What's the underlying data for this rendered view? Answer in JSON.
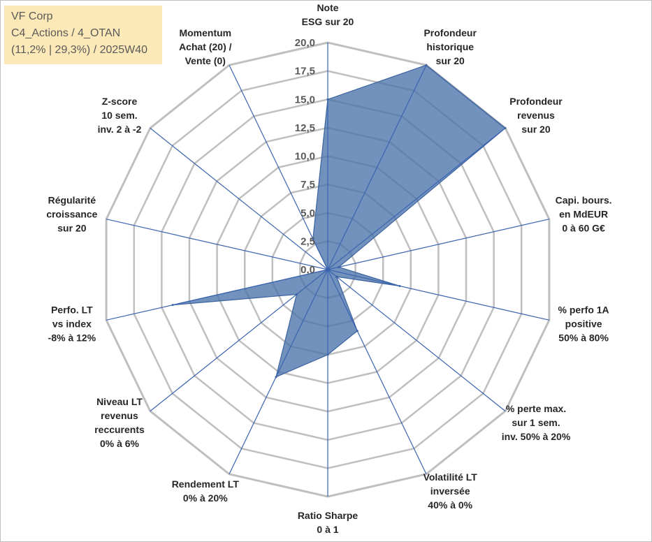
{
  "info_box": {
    "line1": "VF Corp",
    "line2": "C4_Actions / 4_OTAN",
    "line3": "(11,2% | 29,3%) / 2025W40"
  },
  "chart_data": {
    "type": "radar",
    "title": "VF Corp",
    "r_range": [
      0,
      20
    ],
    "ticks": [
      "0,0",
      "2,5",
      "5,0",
      "7,5",
      "10,0",
      "12,5",
      "15,0",
      "17,5",
      "20,0"
    ],
    "axes": [
      [
        "Note",
        "ESG sur 20"
      ],
      [
        "Profondeur",
        "historique",
        "sur 20"
      ],
      [
        "Profondeur",
        "revenus",
        "sur 20"
      ],
      [
        "Capi. bours.",
        "en MdEUR",
        "0 à 60 G€"
      ],
      [
        "% perfo 1A",
        "positive",
        "50% à 80%"
      ],
      [
        "% perte max.",
        "sur 1 sem.",
        "inv. 50% à 20%"
      ],
      [
        "Volatilité LT",
        "inversée",
        "40% à 0%"
      ],
      [
        "Ratio Sharpe",
        "0 à 1"
      ],
      [
        "Rendement LT",
        "0% à 20%"
      ],
      [
        "Niveau LT",
        "revenus",
        "reccurents",
        "0% à 6%"
      ],
      [
        "Perfo. LT",
        "vs index",
        "-8% à 12%"
      ],
      [
        "Régularité",
        "croissance",
        "sur 20"
      ],
      [
        "Z-score",
        "10 sem.",
        "inv. 2 à -2"
      ],
      [
        "Momentum",
        "Achat (20) /",
        "Vente (0)"
      ]
    ],
    "series": [
      {
        "name": "VF Corp",
        "values": [
          15.0,
          20.0,
          20.0,
          1.0,
          6.5,
          1.0,
          6.0,
          7.5,
          10.5,
          3.5,
          14.0,
          0.0,
          0.0,
          3.0
        ],
        "color": "#4a73aa"
      }
    ],
    "colors": {
      "grid": "#bfbfbf",
      "spoke": "#3a64b0",
      "fill": "#4a73aa",
      "fill_stroke": "#3b63a0"
    }
  }
}
